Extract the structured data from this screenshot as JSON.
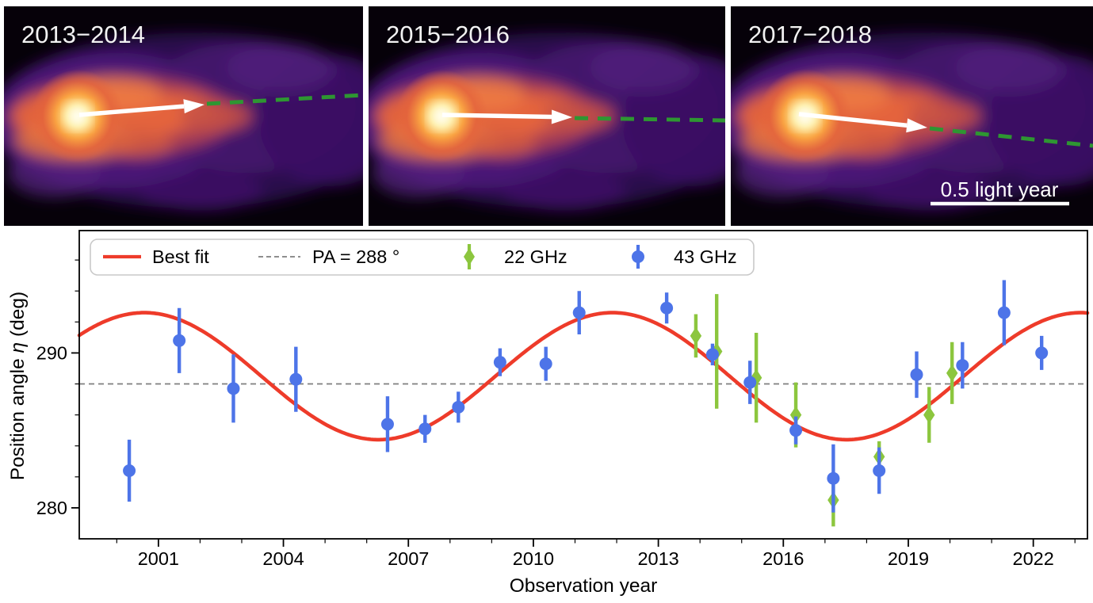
{
  "figure": {
    "panels": [
      {
        "label": "2013−2014"
      },
      {
        "label": "2015−2016"
      },
      {
        "label": "2017−2018",
        "scale_bar_label": "0.5 light year"
      }
    ]
  },
  "chart_data": {
    "type": "scatter",
    "title": "",
    "xlabel": "Observation year",
    "ylabel": "Position angle η (deg)",
    "ylabel_parts": {
      "pre": "Position angle ",
      "italic": "η",
      "post": " (deg)"
    },
    "xlim": [
      1999.1,
      2023.3
    ],
    "ylim": [
      278.0,
      297.9
    ],
    "x_ticks": [
      2001,
      2004,
      2007,
      2010,
      2013,
      2016,
      2019,
      2022
    ],
    "x_minor_step": 1,
    "y_ticks": [
      280,
      290
    ],
    "y_minor_step": 2,
    "grid": false,
    "legend_position": "top-left",
    "reference_line": {
      "label": "PA = 288 °",
      "value": 288,
      "color": "#7f7f7f"
    },
    "best_fit": {
      "label": "Best fit",
      "color": "#ee3b2a",
      "mean_deg": 288.5,
      "amplitude_deg": 4.1,
      "period_years": 11.24,
      "peak_year": 2011.9
    },
    "series": [
      {
        "name": "22 GHz",
        "marker": "diamond",
        "color": "#8cc63e",
        "points": [
          {
            "year": 2013.9,
            "pa": 291.1,
            "err": 1.4
          },
          {
            "year": 2014.4,
            "pa": 290.1,
            "err": 3.7
          },
          {
            "year": 2015.35,
            "pa": 288.4,
            "err": 2.9
          },
          {
            "year": 2016.3,
            "pa": 286.0,
            "err": 2.1
          },
          {
            "year": 2017.2,
            "pa": 280.5,
            "err": 1.7
          },
          {
            "year": 2018.3,
            "pa": 283.3,
            "err": 1.0
          },
          {
            "year": 2019.5,
            "pa": 286.0,
            "err": 1.8
          },
          {
            "year": 2020.05,
            "pa": 288.7,
            "err": 2.0
          }
        ]
      },
      {
        "name": "43 GHz",
        "marker": "circle",
        "color": "#4d74e8",
        "points": [
          {
            "year": 2000.3,
            "pa": 282.4,
            "err": 2.0
          },
          {
            "year": 2001.5,
            "pa": 290.8,
            "err": 2.1
          },
          {
            "year": 2002.8,
            "pa": 287.7,
            "err": 2.2
          },
          {
            "year": 2004.3,
            "pa": 288.3,
            "err": 2.1
          },
          {
            "year": 2006.5,
            "pa": 285.4,
            "err": 1.8
          },
          {
            "year": 2007.4,
            "pa": 285.1,
            "err": 0.9
          },
          {
            "year": 2008.2,
            "pa": 286.5,
            "err": 1.0
          },
          {
            "year": 2009.2,
            "pa": 289.4,
            "err": 0.9
          },
          {
            "year": 2010.3,
            "pa": 289.3,
            "err": 1.1
          },
          {
            "year": 2011.1,
            "pa": 292.6,
            "err": 1.4
          },
          {
            "year": 2013.2,
            "pa": 292.9,
            "err": 1.0
          },
          {
            "year": 2014.3,
            "pa": 289.9,
            "err": 0.7
          },
          {
            "year": 2015.2,
            "pa": 288.1,
            "err": 1.4
          },
          {
            "year": 2016.3,
            "pa": 285.0,
            "err": 0.9
          },
          {
            "year": 2017.2,
            "pa": 281.9,
            "err": 2.2
          },
          {
            "year": 2018.3,
            "pa": 282.4,
            "err": 1.5
          },
          {
            "year": 2019.2,
            "pa": 288.6,
            "err": 1.5
          },
          {
            "year": 2020.3,
            "pa": 289.2,
            "err": 1.5
          },
          {
            "year": 2021.3,
            "pa": 292.6,
            "err": 2.1
          },
          {
            "year": 2022.2,
            "pa": 290.0,
            "err": 1.1
          }
        ]
      }
    ]
  }
}
